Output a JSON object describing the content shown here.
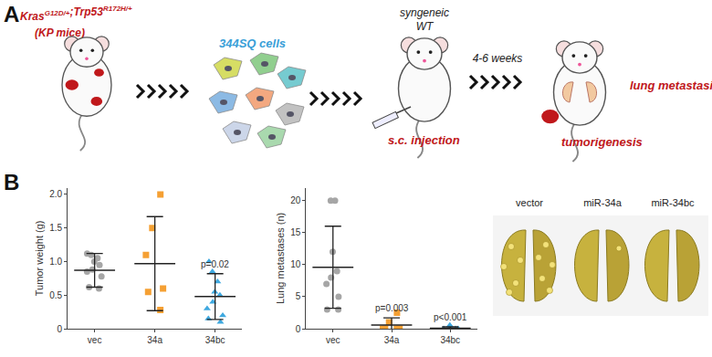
{
  "panel_a": {
    "label": "A",
    "kp_label": [
      {
        "text": "Kras"
      },
      {
        "text": "G12D/+",
        "sup": true
      },
      {
        "text": ";Trp53"
      },
      {
        "text": "R172H/+",
        "sup": true
      }
    ],
    "kp_sub": "(KP mice)",
    "cells": "344SQ cells",
    "host_top": "syngeneic",
    "host": "WT",
    "injection": "s.c. injection",
    "duration": "4-6 weeks",
    "outcome_lung": "lung metastasis",
    "outcome_tumor": "tumorigenesis"
  },
  "panel_b": {
    "label": "B",
    "photo_labels": [
      "vector",
      "miR-34a",
      "miR-34bc"
    ]
  },
  "chart_data": [
    {
      "type": "scatter",
      "y_label": "Tumor weight (g)",
      "categories": [
        "vec",
        "34a",
        "34bc"
      ],
      "ylim": [
        0,
        2.1
      ],
      "yticks": [
        0,
        0.5,
        {
          "value": 1,
          "label": "1.0"
        },
        1.5,
        {
          "value": 2,
          "label": "2.0"
        }
      ],
      "groups": [
        {
          "category": "vec",
          "color": "#a6a6a6",
          "marker": "circle",
          "values": [
            0.6,
            0.62,
            0.78,
            0.85,
            0.88,
            0.95,
            1.0,
            1.05,
            1.1,
            1.12
          ],
          "mean": 0.87,
          "sd": 0.25
        },
        {
          "category": "34a",
          "color": "#f5a033",
          "marker": "square",
          "values": [
            2.0,
            1.5,
            1.1,
            0.6,
            0.55,
            0.28
          ],
          "mean": 0.97,
          "sd": 0.7
        },
        {
          "category": "34bc",
          "color": "#3fa9e0",
          "marker": "triangle-up",
          "values": [
            1.0,
            0.85,
            0.7,
            0.55,
            0.5,
            0.4,
            0.3,
            0.2,
            0.15,
            0.1
          ],
          "mean": 0.48,
          "sd": 0.34
        }
      ],
      "annotations": [
        {
          "category": "34bc",
          "text": "p=0.02"
        }
      ]
    },
    {
      "type": "scatter",
      "y_label": "Lung metastases (n)",
      "categories": [
        "vec",
        "34a",
        "34bc"
      ],
      "ylim": [
        0,
        22
      ],
      "yticks": [
        0,
        5,
        10,
        15,
        20
      ],
      "groups": [
        {
          "category": "vec",
          "color": "#a6a6a6",
          "marker": "circle",
          "values": [
            20,
            20,
            12,
            9,
            8,
            7,
            5,
            3,
            3
          ],
          "mean": 9.6,
          "sd": 6.4
        },
        {
          "category": "34a",
          "color": "#f5a033",
          "marker": "square",
          "values": [
            2.5,
            1,
            0,
            0,
            0,
            0
          ],
          "mean": 0.6,
          "sd": 1.1
        },
        {
          "category": "34bc",
          "color": "#3fa9e0",
          "marker": "triangle-up",
          "values": [
            0.5,
            0.5,
            0,
            0,
            0,
            0,
            0,
            0,
            0,
            0
          ],
          "mean": 0.1,
          "sd": 0.2
        }
      ],
      "annotations": [
        {
          "category": "34a",
          "text": "p=0.003"
        },
        {
          "category": "34bc",
          "text": "p<0.001"
        }
      ]
    }
  ]
}
